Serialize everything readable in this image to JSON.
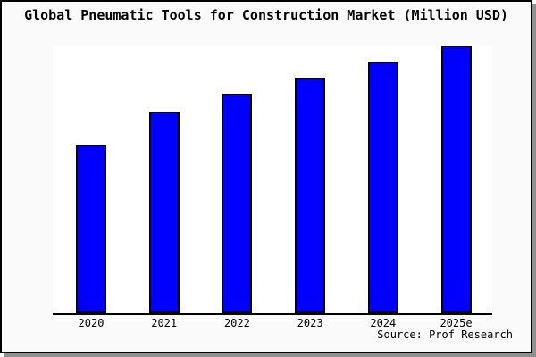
{
  "title": "Global Pneumatic Tools for Construction Market (Million USD)",
  "source": "Source: Prof Research",
  "colors": {
    "bar_fill": "#0000ff",
    "bar_border": "#000000",
    "background": "#fafafa",
    "plot_background": "#ffffff",
    "axis": "#000000",
    "frame_border": "#000000",
    "frame_shadow": "#909090"
  },
  "chart_data": {
    "type": "bar",
    "title": "Global Pneumatic Tools for Construction Market (Million USD)",
    "categories": [
      "2020",
      "2021",
      "2022",
      "2023",
      "2024",
      "2025e"
    ],
    "values": [
      189,
      226,
      246,
      264,
      282,
      300
    ],
    "values_note": "No y-axis ticks or data labels are shown in the chart; values are relative bar heights estimated in pixels (steadily increasing, 2025e tallest).",
    "xlabel": "",
    "ylabel": "",
    "ylim": [
      0,
      301
    ],
    "grid": false,
    "legend": "none",
    "y_axis_visible": false,
    "x_axis_visible": true,
    "source": "Source: Prof Research"
  }
}
